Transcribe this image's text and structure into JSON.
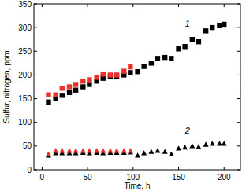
{
  "chart_data": {
    "type": "scatter",
    "x_label": "Time, h",
    "y_label": "Sulfur, nitrogen, ppm",
    "xlim": [
      -9,
      218
    ],
    "xticks": [
      0,
      50,
      100,
      150,
      200
    ],
    "ylim": [
      0,
      350
    ],
    "yticks": [
      0,
      50,
      100,
      150,
      200,
      250,
      300,
      350
    ],
    "grid": false,
    "annotations": [
      "1",
      "2"
    ],
    "series": [
      {
        "color": "#000000",
        "marker": "square",
        "x": [
          7,
          15,
          22,
          30,
          37,
          45,
          52,
          60,
          67,
          75,
          82,
          90,
          97,
          105,
          112,
          120,
          127,
          135,
          142,
          150,
          157,
          165,
          172,
          180,
          187,
          195,
          200
        ],
        "values": [
          143,
          150,
          157,
          163,
          168,
          175,
          180,
          187,
          193,
          197,
          197,
          200,
          205,
          207,
          218,
          225,
          235,
          237,
          235,
          255,
          260,
          275,
          270,
          293,
          300,
          305,
          307
        ]
      },
      {
        "color": "#e8332c",
        "marker": "square",
        "x": [
          7,
          15,
          22,
          30,
          37,
          45,
          52,
          60,
          67,
          75,
          82,
          90,
          97
        ],
        "values": [
          158,
          158,
          172,
          175,
          180,
          187,
          190,
          195,
          202,
          200,
          200,
          208,
          217
        ]
      },
      {
        "color": "#000000",
        "marker": "triangle",
        "x": [
          7,
          15,
          22,
          30,
          37,
          45,
          52,
          60,
          67,
          75,
          82,
          90,
          97,
          105,
          112,
          120,
          127,
          135,
          142,
          150,
          157,
          165,
          172,
          180,
          187,
          195,
          200
        ],
        "values": [
          30,
          35,
          35,
          35,
          35,
          36,
          35,
          36,
          35,
          36,
          36,
          36,
          37,
          30,
          35,
          38,
          40,
          38,
          33,
          45,
          47,
          50,
          48,
          53,
          55,
          55,
          55
        ]
      },
      {
        "color": "#e8332c",
        "marker": "triangle",
        "x": [
          7,
          15,
          22,
          30,
          37,
          45,
          52,
          60,
          67,
          75,
          82,
          90,
          97
        ],
        "values": [
          33,
          40,
          40,
          40,
          40,
          40,
          40,
          40,
          40,
          40,
          40,
          40,
          40
        ]
      }
    ]
  }
}
